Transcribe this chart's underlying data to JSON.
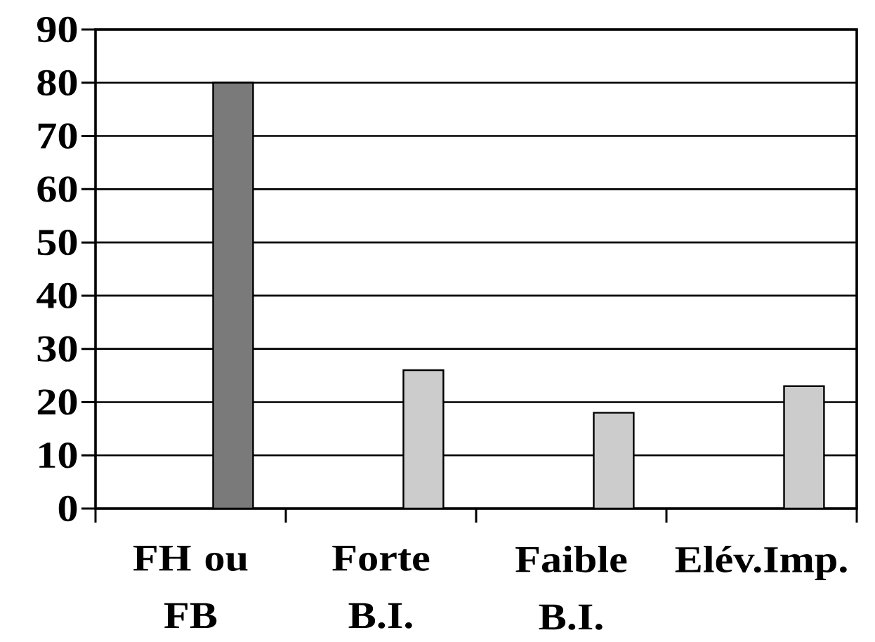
{
  "chart_data": {
    "type": "bar",
    "categories": [
      "FH ou FB",
      "Forte B.I.",
      "Faible B.I.",
      "Elév.Imp."
    ],
    "values": [
      80,
      26,
      18,
      23
    ],
    "colors": [
      "#7a7a7a",
      "#cccccc",
      "#cccccc",
      "#cccccc"
    ],
    "ylim": [
      0,
      90
    ],
    "yticks": [
      0,
      10,
      20,
      30,
      40,
      50,
      60,
      70,
      80,
      90
    ],
    "grid": "y"
  }
}
